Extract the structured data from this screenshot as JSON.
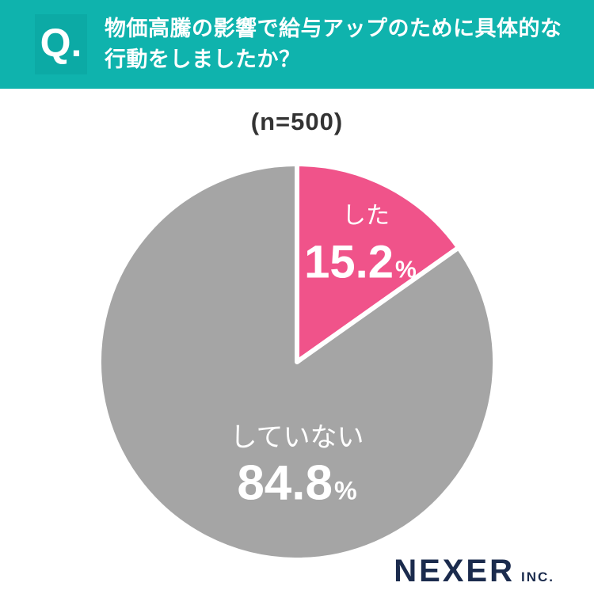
{
  "header": {
    "q_label": "Q.",
    "question_line1": "物価高騰の影響で給与アップのために具体的な",
    "question_line2": "行動をしましたか？"
  },
  "chart": {
    "sample_label": "(n=500)"
  },
  "chart_data": {
    "type": "pie",
    "title": "(n=500)",
    "labels": [
      "した",
      "していない"
    ],
    "values": [
      15.2,
      84.8
    ],
    "colors": [
      "#f0538a",
      "#a5a5a5"
    ],
    "start_angle_deg": -90,
    "direction": "clockwise",
    "slices": [
      {
        "label": "した",
        "value": 15.2,
        "display": "15.2",
        "unit": "%",
        "color": "#f0538a"
      },
      {
        "label": "していない",
        "value": 84.8,
        "display": "84.8",
        "unit": "%",
        "color": "#a5a5a5"
      }
    ]
  },
  "footer": {
    "logo_main": "NEXER",
    "logo_suffix": "INC."
  },
  "colors": {
    "header_bg": "#0fb3ad",
    "q_box_bg": "#0caaa5",
    "pink": "#f0538a",
    "gray": "#a5a5a5",
    "navy": "#1b2b4d"
  }
}
